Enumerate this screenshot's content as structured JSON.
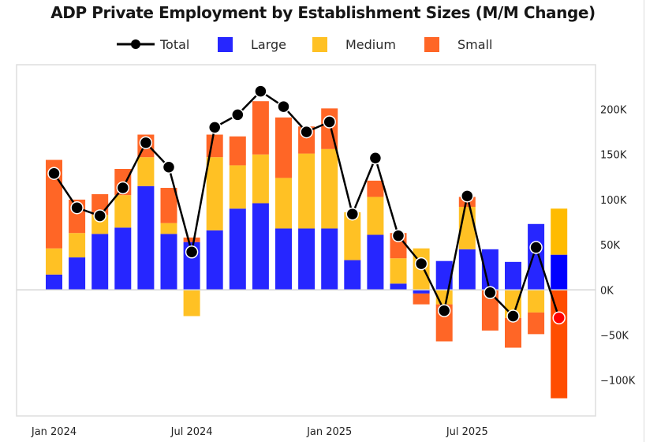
{
  "chart_data": {
    "type": "bar",
    "stacked": true,
    "title": "ADP Private Employment by Establishment Sizes (M/M Change)",
    "xlabel": "",
    "ylabel": "",
    "ylim": [
      -130,
      250
    ],
    "yunit": "thousands",
    "yaxis_side": "right",
    "yticks": [
      -100,
      -50,
      0,
      50,
      100,
      150,
      200
    ],
    "ytick_labels": [
      "−100K",
      "−50K",
      "0K",
      "50K",
      "100K",
      "150K",
      "200K"
    ],
    "xtick_labels": [
      {
        "index": 0,
        "label": "Jan 2024"
      },
      {
        "index": 6,
        "label": "Jul 2024"
      },
      {
        "index": 12,
        "label": "Jan 2025"
      },
      {
        "index": 18,
        "label": "Jul 2025"
      }
    ],
    "grid": false,
    "zero_line": true,
    "legend_position": "top",
    "categories": [
      "Jan 2024",
      "Feb 2024",
      "Mar 2024",
      "Apr 2024",
      "May 2024",
      "Jun 2024",
      "Jul 2024",
      "Aug 2024",
      "Sep 2024",
      "Oct 2024",
      "Nov 2024",
      "Dec 2024",
      "Jan 2025",
      "Feb 2025",
      "Mar 2025",
      "Apr 2025",
      "May 2025",
      "Jun 2025",
      "Jul 2025",
      "Aug 2025",
      "Sep 2025",
      "Oct 2025",
      "Nov 2025"
    ],
    "series": [
      {
        "name": "Large",
        "kind": "bar",
        "color": "#2626FF",
        "highlight_color": "#0000FF",
        "values": [
          17,
          36,
          62,
          69,
          115,
          62,
          53,
          66,
          90,
          96,
          68,
          68,
          68,
          33,
          61,
          7,
          -4,
          32,
          45,
          45,
          31,
          73,
          39
        ]
      },
      {
        "name": "Medium",
        "kind": "bar",
        "color": "#FFC124",
        "highlight_color": "#FFBB00",
        "values": [
          29,
          27,
          21,
          36,
          32,
          12,
          -29,
          81,
          48,
          54,
          56,
          83,
          88,
          53,
          42,
          28,
          46,
          -16,
          47,
          0,
          -31,
          -25,
          51
        ]
      },
      {
        "name": "Small",
        "kind": "bar",
        "color": "#FF6626",
        "highlight_color": "#FF4D00",
        "values": [
          98,
          37,
          23,
          29,
          25,
          39,
          5,
          25,
          32,
          59,
          67,
          30,
          45,
          0,
          18,
          28,
          -12,
          -41,
          11,
          -45,
          -33,
          -24,
          -120
        ]
      },
      {
        "name": "Total",
        "kind": "line",
        "color": "#000000",
        "highlight_color": "#FF0000",
        "values": [
          129,
          91,
          82,
          113,
          163,
          136,
          42,
          180,
          194,
          220,
          203,
          175,
          186,
          84,
          146,
          60,
          29,
          -23,
          104,
          -3,
          -29,
          47,
          -31
        ]
      }
    ],
    "highlight_index": 22
  },
  "legend": [
    {
      "name": "Total",
      "kind": "line",
      "color": "#000000"
    },
    {
      "name": "Large",
      "kind": "swatch",
      "color": "#2626FF"
    },
    {
      "name": "Medium",
      "kind": "swatch",
      "color": "#FFC124"
    },
    {
      "name": "Small",
      "kind": "swatch",
      "color": "#FF6626"
    }
  ]
}
